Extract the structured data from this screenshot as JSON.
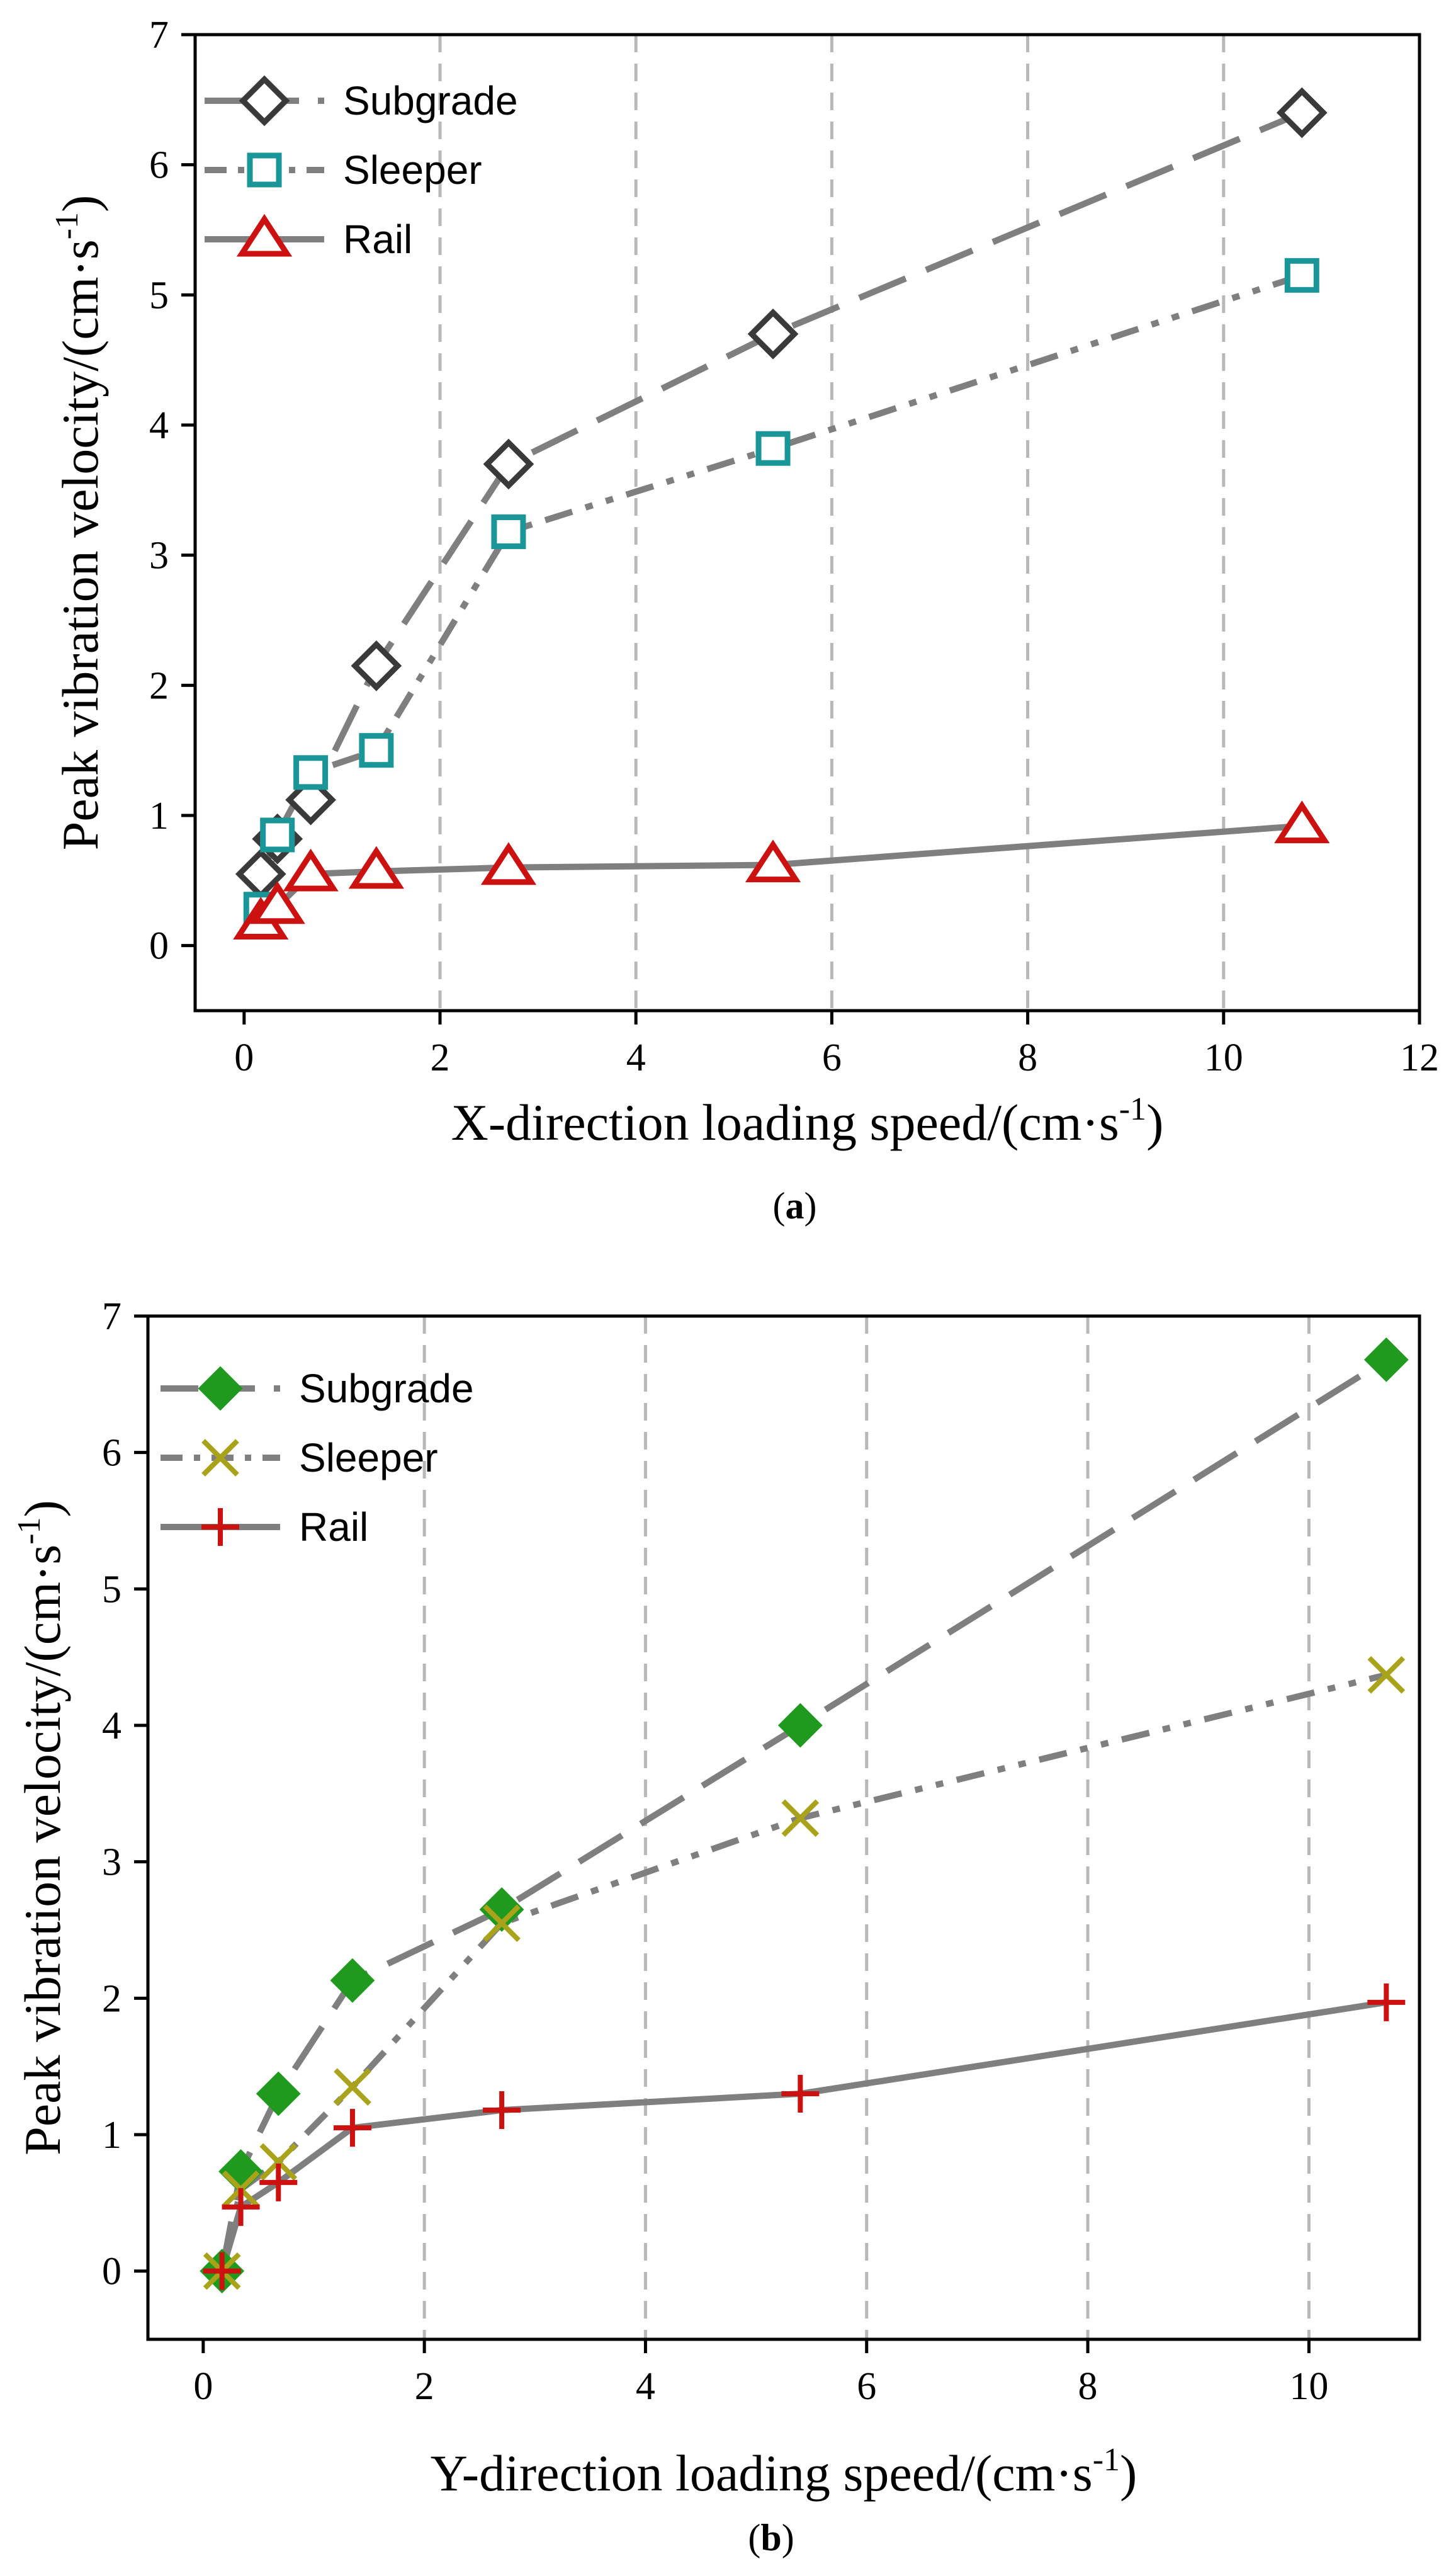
{
  "chart_data": [
    {
      "id": "a",
      "type": "line",
      "caption_letter": "a",
      "xlabel": "X-direction loading speed/(cm·s",
      "ylabel": "Peak vibration velocity/(cm·s",
      "label_superscript": "-1",
      "label_close": ")",
      "xlim": [
        -0.5,
        12
      ],
      "ylim": [
        -0.5,
        7
      ],
      "xticks": [
        0,
        2,
        4,
        6,
        8,
        10,
        12
      ],
      "yticks": [
        0,
        1,
        2,
        3,
        4,
        5,
        6,
        7
      ],
      "grid_x": [
        2,
        4,
        6,
        8,
        10
      ],
      "legend": "top-left",
      "series": [
        {
          "name": "Subgrade",
          "marker": "diamond-open",
          "color": "#3a3a3a",
          "line_style": "dash",
          "x": [
            0.17,
            0.34,
            0.68,
            1.35,
            2.7,
            5.4,
            10.8
          ],
          "y": [
            0.55,
            0.82,
            1.12,
            2.15,
            3.7,
            4.7,
            6.4
          ]
        },
        {
          "name": "Sleeper",
          "marker": "square-open",
          "color": "#1a9598",
          "line_style": "dashdotdot",
          "x": [
            0.17,
            0.34,
            0.68,
            1.35,
            2.7,
            5.4,
            10.8
          ],
          "y": [
            0.28,
            0.85,
            1.33,
            1.5,
            3.18,
            3.82,
            5.15
          ]
        },
        {
          "name": "Rail",
          "marker": "triangle-open",
          "color": "#cc1111",
          "line_style": "solid",
          "x": [
            0.17,
            0.34,
            0.68,
            1.35,
            2.7,
            5.4,
            10.8
          ],
          "y": [
            0.18,
            0.3,
            0.55,
            0.57,
            0.6,
            0.62,
            0.92
          ]
        }
      ]
    },
    {
      "id": "b",
      "type": "line",
      "caption_letter": "b",
      "xlabel": "Y-direction loading speed/(cm·s",
      "ylabel": "Peak vibration velocity/(cm·s",
      "label_superscript": "-1",
      "label_close": ")",
      "xlim": [
        -0.5,
        11
      ],
      "ylim": [
        -0.5,
        7
      ],
      "xticks": [
        0,
        2,
        4,
        6,
        8,
        10
      ],
      "yticks": [
        0,
        1,
        2,
        3,
        4,
        5,
        6,
        7
      ],
      "grid_x": [
        2,
        4,
        6,
        8,
        10
      ],
      "legend": "top-left",
      "series": [
        {
          "name": "Subgrade",
          "marker": "diamond-filled",
          "color": "#1f9a1f",
          "line_style": "dash",
          "x": [
            0.17,
            0.34,
            0.68,
            1.35,
            2.7,
            5.4,
            10.7
          ],
          "y": [
            0.0,
            0.73,
            1.3,
            2.13,
            2.65,
            4.0,
            6.68
          ]
        },
        {
          "name": "Sleeper",
          "marker": "x",
          "color": "#a8a31a",
          "line_style": "dashdotdot",
          "x": [
            0.17,
            0.34,
            0.68,
            1.35,
            2.7,
            5.4,
            10.7
          ],
          "y": [
            0.0,
            0.6,
            0.8,
            1.35,
            2.55,
            3.32,
            4.37
          ]
        },
        {
          "name": "Rail",
          "marker": "plus",
          "color": "#cc1111",
          "line_style": "solid",
          "x": [
            0.17,
            0.34,
            0.68,
            1.35,
            2.7,
            5.4,
            10.7
          ],
          "y": [
            0.0,
            0.47,
            0.65,
            1.05,
            1.18,
            1.3,
            1.97
          ]
        }
      ]
    }
  ]
}
